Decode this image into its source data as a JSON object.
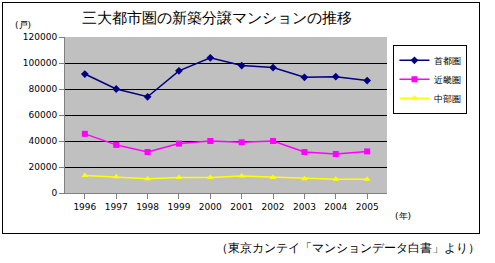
{
  "chart_data": {
    "type": "line",
    "title": "三大都市圏の新築分譲マンションの推移",
    "ylabel": "(戸)",
    "xlabel": "(年)",
    "caption": "（東京カンテイ「マンションデータ白書」より）",
    "categories": [
      "1996",
      "1997",
      "1998",
      "1999",
      "2000",
      "2001",
      "2002",
      "2003",
      "2004",
      "2005"
    ],
    "series": [
      {
        "name": "首都圏",
        "color": "#000080",
        "marker": "diamond",
        "values": [
          91500,
          80000,
          74000,
          94000,
          104000,
          98000,
          96500,
          89000,
          89500,
          86500
        ]
      },
      {
        "name": "近畿圏",
        "color": "#ff00ff",
        "marker": "square",
        "values": [
          45500,
          37000,
          31500,
          38000,
          40000,
          39000,
          40000,
          31500,
          30000,
          32000
        ]
      },
      {
        "name": "中部圏",
        "color": "#ffff00",
        "marker": "triangle-up",
        "values": [
          13500,
          12500,
          11000,
          12000,
          12000,
          13000,
          12000,
          11000,
          10500,
          10500
        ]
      }
    ],
    "ylim": [
      0,
      120000
    ],
    "yticks": [
      0,
      20000,
      40000,
      60000,
      80000,
      100000,
      120000
    ],
    "grid": true,
    "legend": "right"
  }
}
